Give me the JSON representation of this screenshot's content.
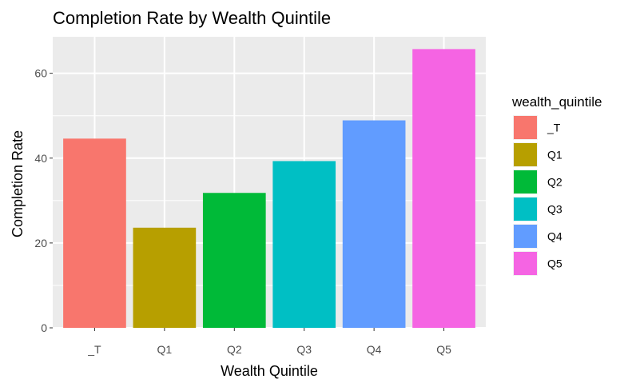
{
  "chart_data": {
    "type": "bar",
    "title": "Completion Rate by Wealth Quintile",
    "xlabel": "Wealth Quintile",
    "ylabel": "Completion Rate",
    "categories": [
      "_T",
      "Q1",
      "Q2",
      "Q3",
      "Q4",
      "Q5"
    ],
    "values": [
      44.6,
      23.6,
      31.8,
      39.3,
      48.9,
      65.7
    ],
    "colors": [
      "#F8766D",
      "#B79F00",
      "#00BA38",
      "#00BFC4",
      "#619CFF",
      "#F564E3"
    ],
    "ylim": [
      0,
      68.6
    ],
    "yticks": [
      0,
      20,
      40,
      60
    ],
    "ytick_labels": [
      "0",
      "20",
      "40",
      "60"
    ],
    "grid": true,
    "panel_background": "#EBEBEB",
    "legend": {
      "title": "wealth_quintile",
      "position": "right",
      "entries": [
        "_T",
        "Q1",
        "Q2",
        "Q3",
        "Q4",
        "Q5"
      ]
    }
  }
}
